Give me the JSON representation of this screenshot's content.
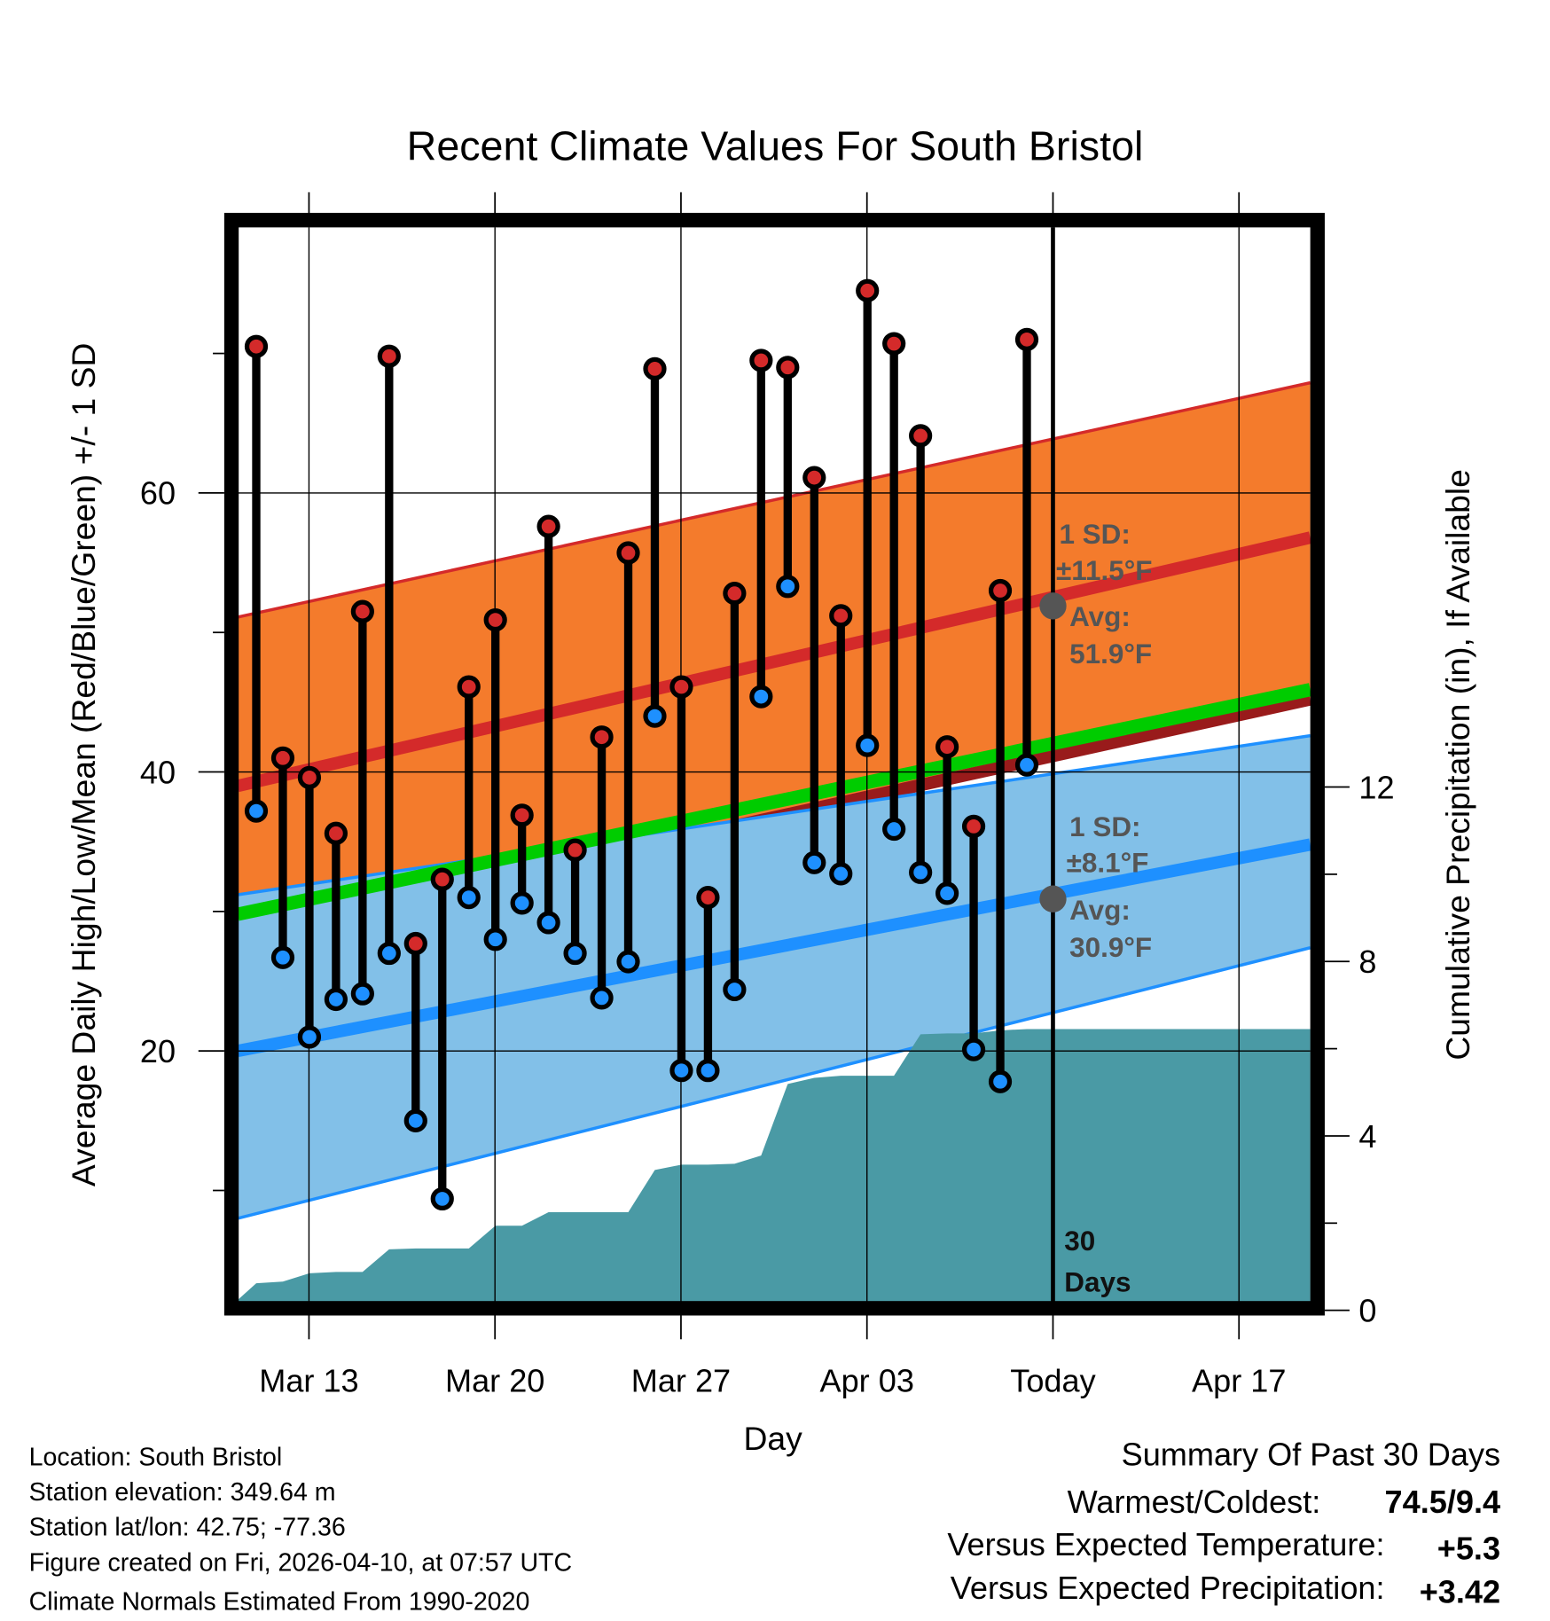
{
  "chart_data": {
    "type": "line",
    "title": "Recent Climate Values For South Bristol",
    "xlabel": "Day",
    "ylabel": "Average Daily High/Low/Mean (Red/Blue/Green) +/- 1 SD",
    "y2label": "Cumulative Precipitation (in), If Available",
    "ylim": [
      2,
      79
    ],
    "y2lim": [
      0,
      18.5
    ],
    "x_ticks": [
      "Mar 13",
      "Mar 20",
      "Mar 27",
      "Apr 03",
      "Today",
      "Apr 17"
    ],
    "y_ticks": [
      "20",
      "40",
      "60"
    ],
    "y2_ticks": [
      "0",
      "4",
      "8",
      "12"
    ],
    "days": [
      "Mar 11",
      "Mar 12",
      "Mar 13",
      "Mar 14",
      "Mar 15",
      "Mar 16",
      "Mar 17",
      "Mar 18",
      "Mar 19",
      "Mar 20",
      "Mar 21",
      "Mar 22",
      "Mar 23",
      "Mar 24",
      "Mar 25",
      "Mar 26",
      "Mar 27",
      "Mar 28",
      "Mar 29",
      "Mar 30",
      "Mar 31",
      "Apr 01",
      "Apr 02",
      "Apr 03",
      "Apr 04",
      "Apr 05",
      "Apr 06",
      "Apr 07",
      "Apr 08",
      "Apr 09"
    ],
    "series": [
      {
        "name": "Daily High",
        "color": "#d42a2a",
        "values": [
          70.5,
          41.0,
          39.6,
          35.6,
          51.5,
          69.8,
          27.7,
          32.3,
          46.1,
          50.9,
          36.9,
          57.6,
          34.4,
          42.5,
          55.7,
          68.9,
          46.1,
          31.0,
          52.8,
          69.5,
          69.0,
          61.1,
          51.2,
          74.5,
          70.7,
          64.1,
          41.8,
          36.1,
          53.0,
          71.0
        ]
      },
      {
        "name": "Daily Low",
        "color": "#1e90ff",
        "values": [
          37.2,
          26.7,
          21.0,
          23.7,
          24.1,
          27.0,
          15.0,
          9.4,
          31.0,
          28.0,
          30.6,
          29.2,
          27.0,
          23.8,
          26.4,
          44.0,
          18.6,
          18.6,
          24.4,
          45.4,
          53.3,
          33.5,
          32.7,
          41.9,
          35.9,
          32.8,
          31.3,
          20.1,
          17.8,
          40.5
        ]
      },
      {
        "name": "Cumulative Precipitation (in)",
        "color": "#4a9aa5",
        "values": [
          0.62,
          0.66,
          0.85,
          0.88,
          0.88,
          1.4,
          1.42,
          1.42,
          1.42,
          1.94,
          1.94,
          2.25,
          2.25,
          2.25,
          2.25,
          3.22,
          3.34,
          3.34,
          3.36,
          3.55,
          5.19,
          5.33,
          5.38,
          5.38,
          5.38,
          6.33,
          6.35,
          6.35,
          6.42,
          6.45
        ]
      }
    ],
    "normals": {
      "x_range_days": [
        "Mar 10.3",
        "Apr 19.7"
      ],
      "avg_high": [
        39.0,
        56.8
      ],
      "high_sd_upper": [
        51.1,
        67.9
      ],
      "high_sd_lower": [
        28.3,
        45.2
      ],
      "avg_mean": [
        29.8,
        45.9
      ],
      "avg_low": [
        20.0,
        34.8
      ],
      "low_sd_upper": [
        31.2,
        42.6
      ],
      "low_sd_lower": [
        8.0,
        27.4
      ],
      "colors": {
        "high_band": "#f47b2c",
        "high_line": "#d42a2a",
        "high_lower_line": "#991b1b",
        "mean_line": "#00cc00",
        "low_band": "#82c0e8",
        "low_line": "#1e90ff"
      }
    },
    "annotations": {
      "high_sd_1": "1 SD:",
      "high_sd_2": "±11.5°F",
      "high_avg_1": "Avg:",
      "high_avg_2": "51.9°F",
      "high_avg_value": 51.9,
      "low_sd_1": "1 SD:",
      "low_sd_2": "±8.1°F",
      "low_avg_1": "Avg:",
      "low_avg_2": "30.9°F",
      "low_avg_value": 30.9,
      "days_1": "30",
      "days_2": "Days"
    }
  },
  "footer": {
    "location": "Location: South Bristol",
    "elevation": "Station elevation: 349.64 m",
    "latlon": "Station lat/lon: 42.75; -77.36",
    "created": "Figure created on Fri, 2026-04-10, at 07:57 UTC",
    "normals": "Climate Normals Estimated From 1990-2020"
  },
  "summary": {
    "title": "Summary Of Past 30 Days",
    "warmest_label": "Warmest/Coldest:",
    "warmest_value": "74.5/9.4",
    "temp_label": "Versus Expected Temperature:",
    "temp_value": "+5.3",
    "temp_color": "#d42a2a",
    "precip_label": "Versus Expected Precipitation:",
    "precip_value": "+3.42",
    "precip_color": "#22bb22"
  }
}
